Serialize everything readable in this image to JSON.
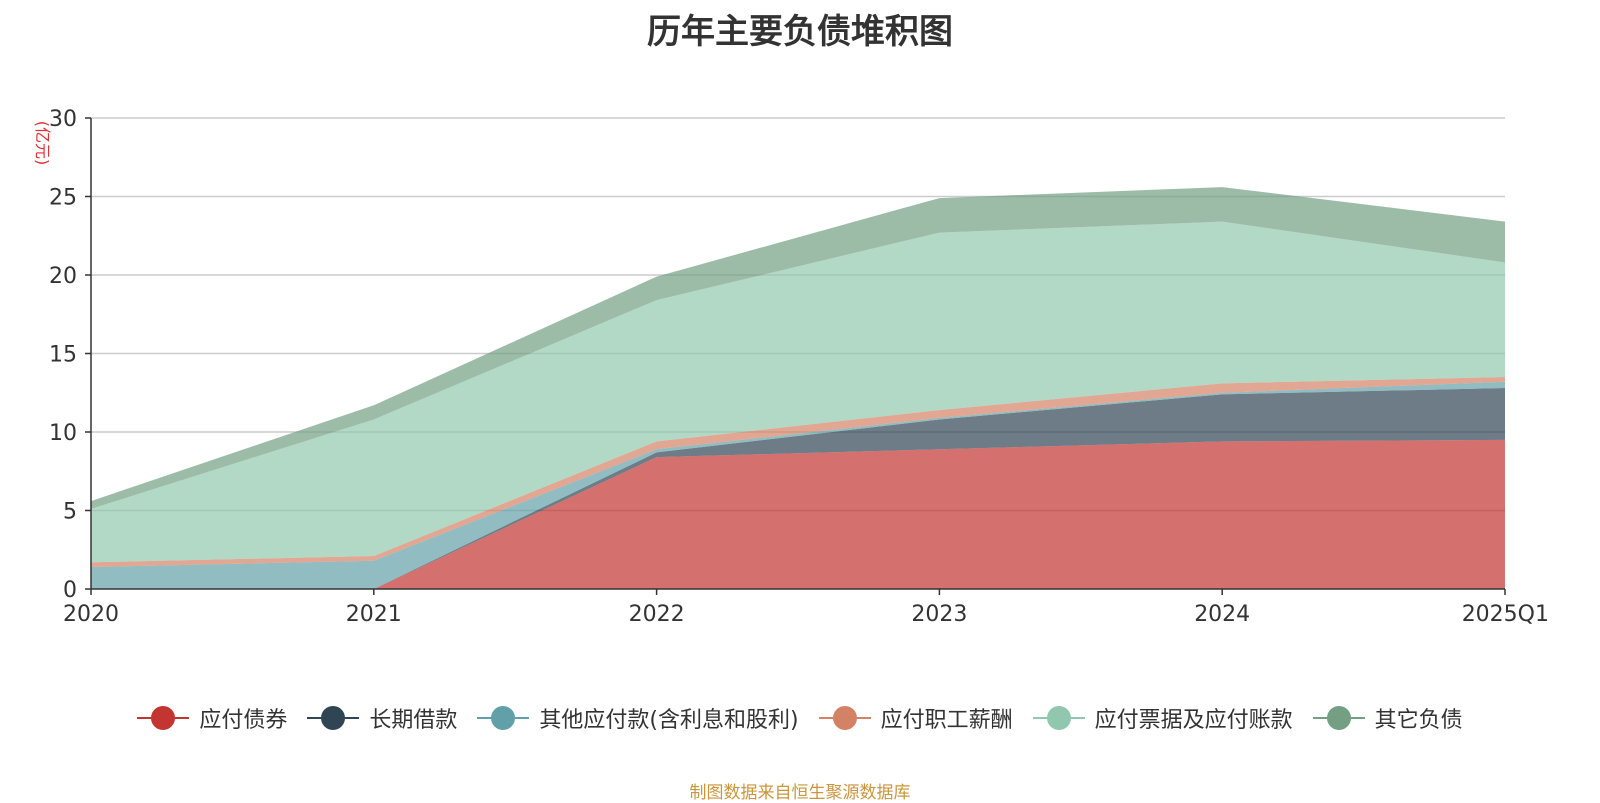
{
  "chart_data": {
    "type": "area",
    "stacked": true,
    "title": "历年主要负债堆积图",
    "ylabel": "(亿元)",
    "ylim": [
      0,
      30
    ],
    "yticks": [
      0,
      5,
      10,
      15,
      20,
      25,
      30
    ],
    "grid": true,
    "legend_position": "bottom",
    "categories": [
      "2020",
      "2021",
      "2022",
      "2023",
      "2024",
      "2025Q1"
    ],
    "series": [
      {
        "name": "应付债券",
        "color": "#c23531",
        "values": [
          0,
          0,
          8.4,
          8.9,
          9.4,
          9.5
        ]
      },
      {
        "name": "长期借款",
        "color": "#2f4554",
        "values": [
          0,
          0,
          0.3,
          1.9,
          3.0,
          3.3
        ]
      },
      {
        "name": "其他应付款(含利息和股利)",
        "color": "#61a0a8",
        "values": [
          1.4,
          1.8,
          0.2,
          0.1,
          0.1,
          0.4
        ]
      },
      {
        "name": "应付职工薪酬",
        "color": "#d48265",
        "values": [
          0.3,
          0.3,
          0.5,
          0.5,
          0.6,
          0.3
        ]
      },
      {
        "name": "应付票据及应付账款",
        "color": "#91c7ae",
        "values": [
          3.4,
          8.7,
          9.0,
          11.3,
          10.3,
          7.3
        ]
      },
      {
        "name": "其它负债",
        "color": "#749f83",
        "values": [
          0.5,
          0.9,
          1.5,
          2.2,
          2.2,
          2.6
        ]
      }
    ]
  },
  "source_note": "制图数据来自恒生聚源数据库"
}
